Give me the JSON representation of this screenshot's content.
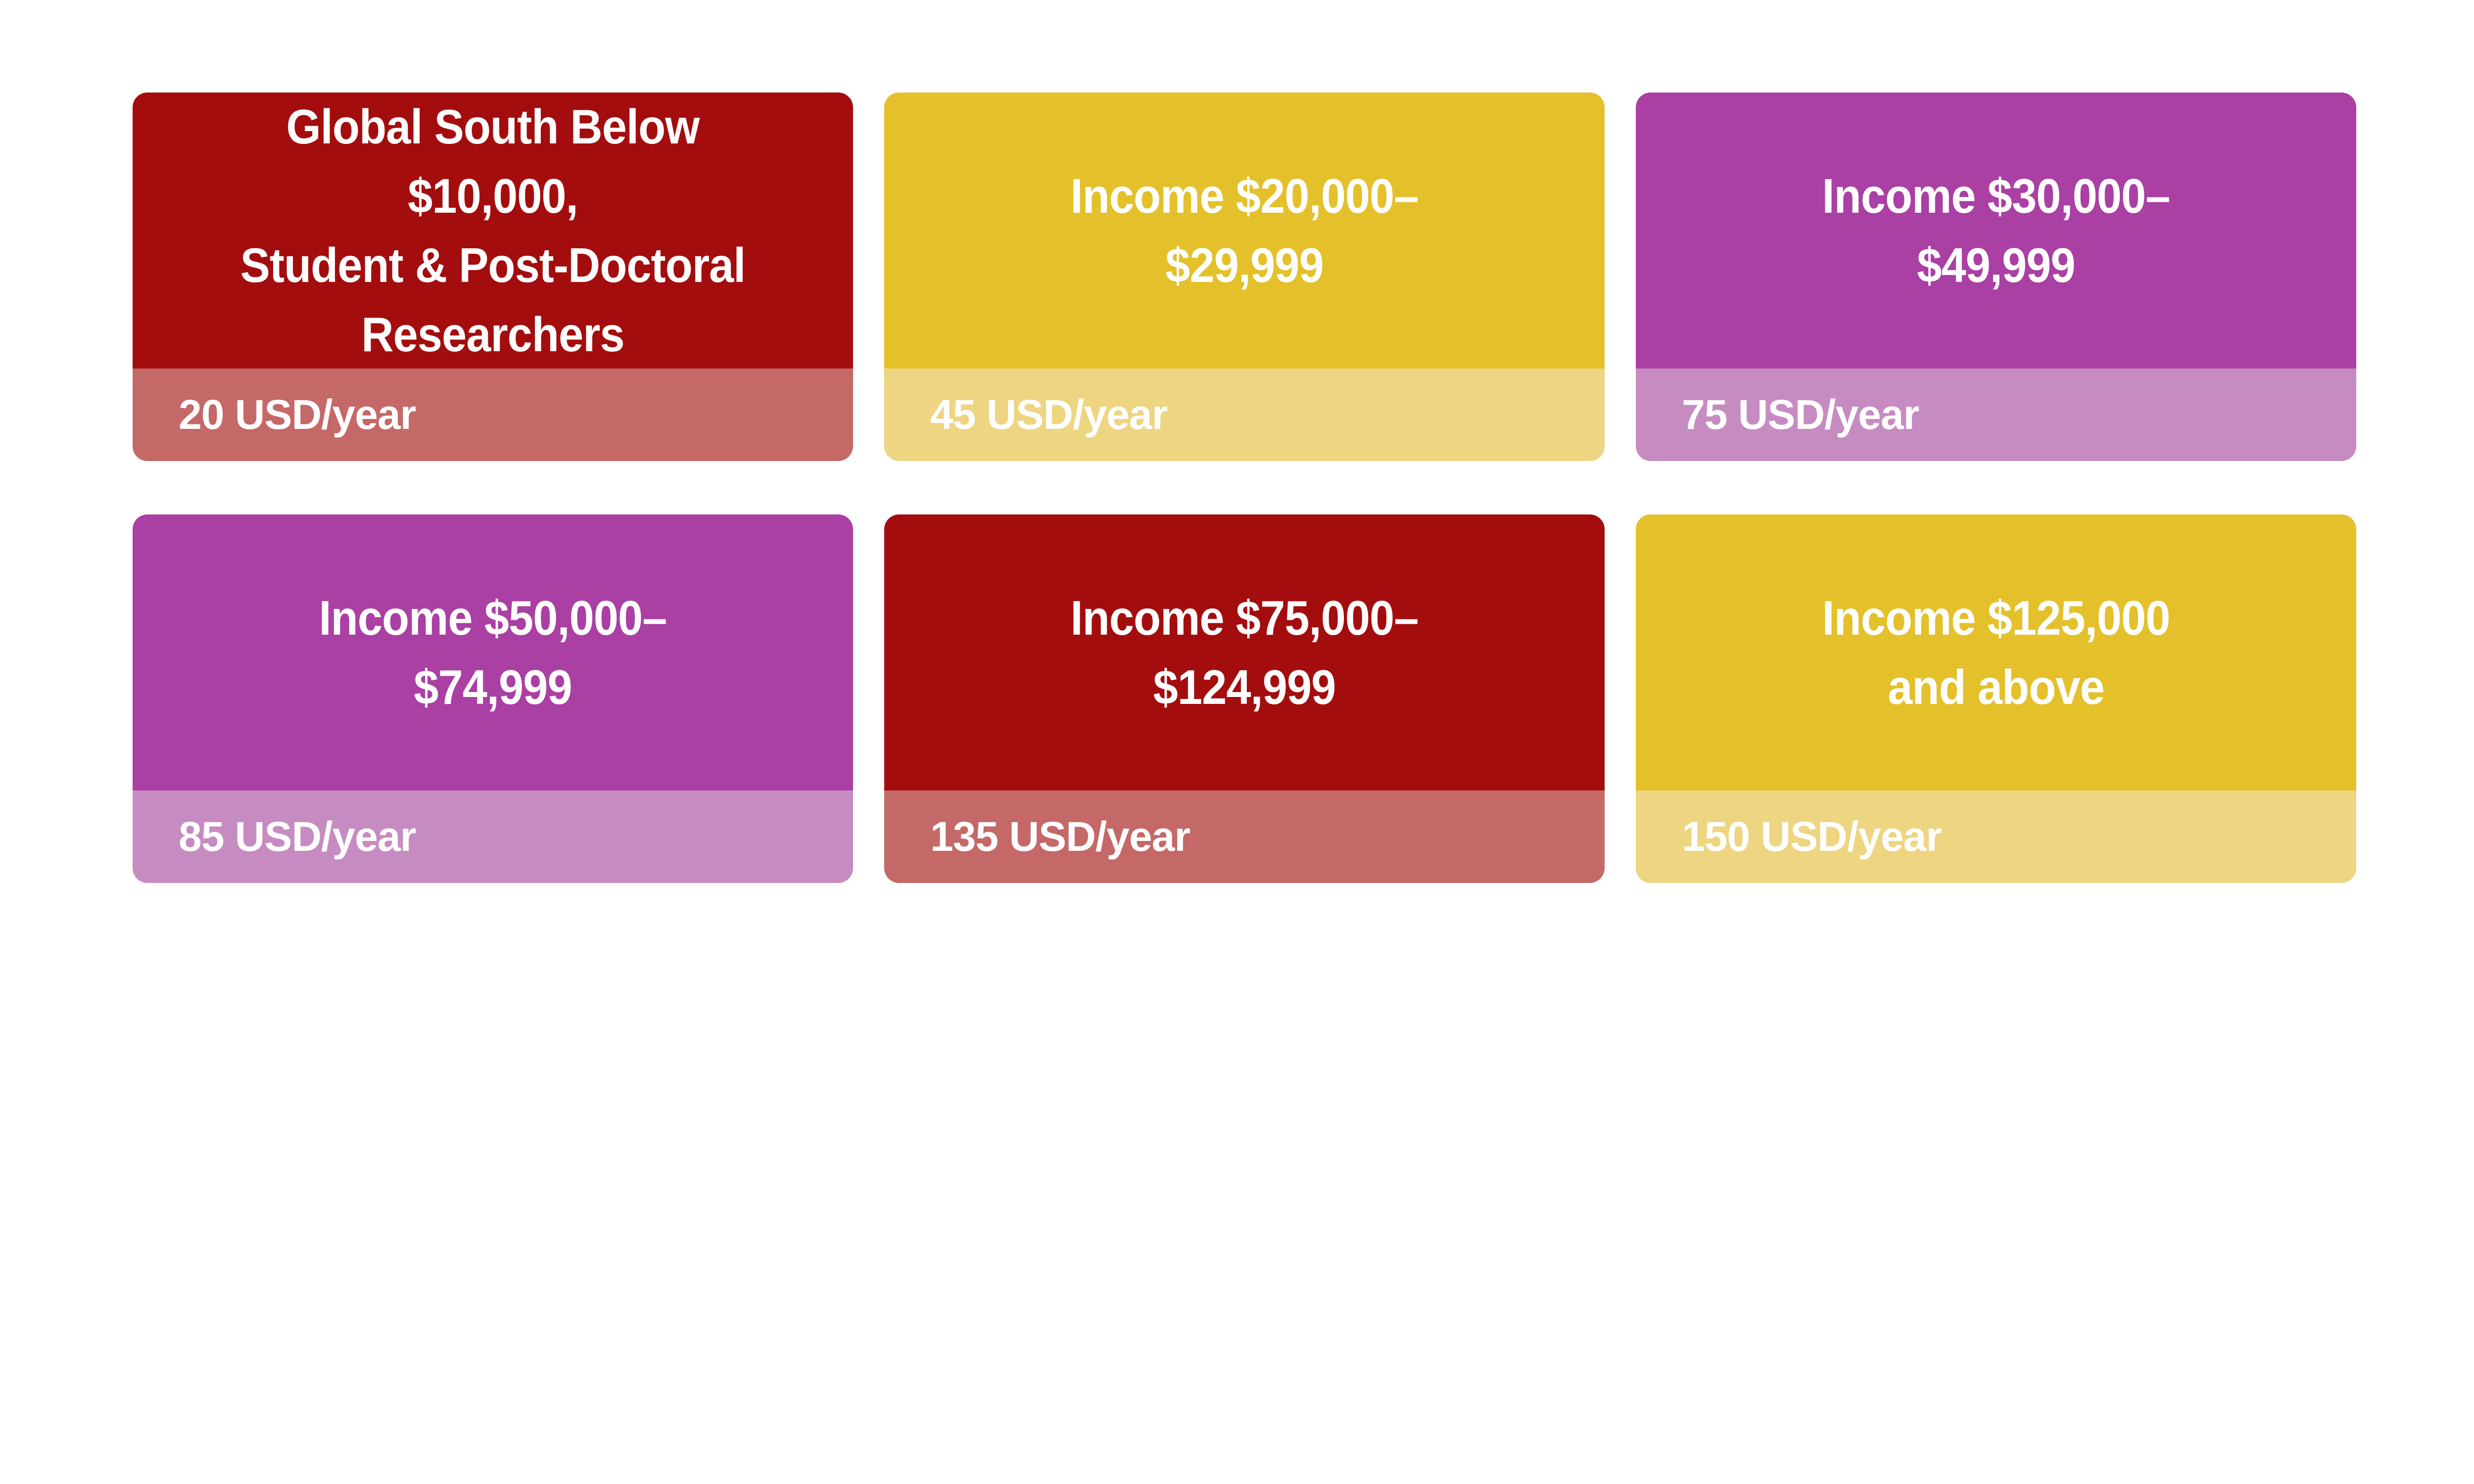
{
  "palette": {
    "background": "#ffffff",
    "text": "#ffffff",
    "red": "#a40d0e",
    "red_light": "#c56868",
    "yellow": "#e4c02b",
    "yellow_light": "#edd582",
    "magenta": "#aa3fa4",
    "magenta_light": "#c68cc1"
  },
  "cards": [
    {
      "tier": 1,
      "theme": "red",
      "title_lines": [
        "Global South Below",
        "$10,000,",
        "Student & Post-Doctoral",
        "Researchers"
      ],
      "price": "20 USD/year"
    },
    {
      "tier": 2,
      "theme": "yellow",
      "title_lines": [
        "Income $20,000–",
        "$29,999"
      ],
      "price": "45 USD/year"
    },
    {
      "tier": 3,
      "theme": "magenta",
      "title_lines": [
        "Income $30,000–",
        "$49,999"
      ],
      "price": "75 USD/year"
    },
    {
      "tier": 4,
      "theme": "magenta",
      "title_lines": [
        "Income $50,000–",
        "$74,999"
      ],
      "price": "85 USD/year"
    },
    {
      "tier": 5,
      "theme": "red",
      "title_lines": [
        "Income $75,000–",
        "$124,999"
      ],
      "price": "135 USD/year"
    },
    {
      "tier": 6,
      "theme": "yellow",
      "title_lines": [
        "Income $125,000",
        "and above"
      ],
      "price": "150 USD/year"
    }
  ]
}
